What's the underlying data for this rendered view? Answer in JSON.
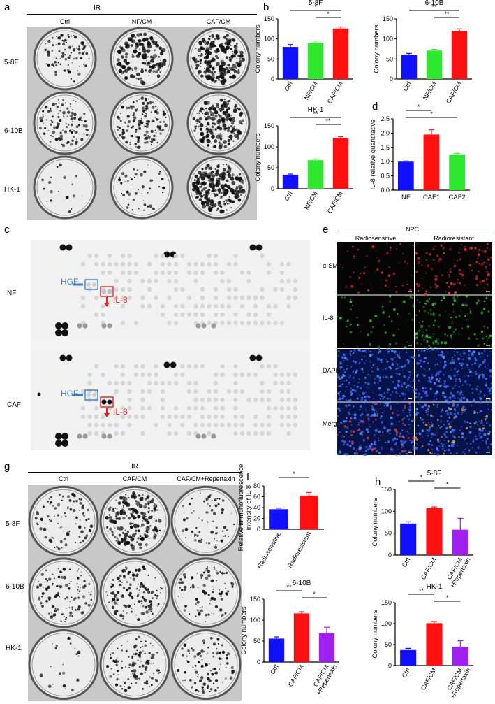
{
  "panels": {
    "a": {
      "label": "a",
      "header": "IR",
      "columns": [
        "Ctrl",
        "NF/CM",
        "CAF/CM"
      ],
      "rows": [
        "5-8F",
        "6-10B",
        "HK-1"
      ]
    },
    "c": {
      "label": "c",
      "rows": [
        "NF",
        "CAF"
      ],
      "hgf": "HGF",
      "il8": "IL-8"
    },
    "e": {
      "label": "e",
      "header": "NPC",
      "columns": [
        "Radiosensitive",
        "Radioresistant"
      ],
      "rows": [
        "α-SMA",
        "IL-8",
        "DAPI",
        "Merge"
      ]
    },
    "g": {
      "label": "g",
      "header": "IR",
      "columns": [
        "Ctrl",
        "CAF/CM",
        "CAF/CM+Repertaxin"
      ],
      "rows": [
        "5-8F",
        "6-10B",
        "HK-1"
      ]
    },
    "b": {
      "label": "b"
    },
    "d": {
      "label": "d"
    },
    "f": {
      "label": "f"
    },
    "h": {
      "label": "h"
    }
  },
  "colors": {
    "blue": "#1010ff",
    "green": "#2ee82e",
    "red": "#ff1010",
    "purple": "#a020f0",
    "hgf": "#3a7fd0",
    "il8": "#e82020"
  },
  "chart_data": [
    {
      "id": "b1",
      "type": "bar",
      "title": "5-8F",
      "ylabel": "Colony numbers",
      "categories": [
        "Ctrl",
        "NF/CM",
        "CAF/CM"
      ],
      "values": [
        80,
        90,
        126
      ],
      "errors": [
        6,
        5,
        4
      ],
      "ylim": [
        0,
        150
      ],
      "yticks": [
        "0",
        "50",
        "100",
        "150"
      ],
      "sig": [
        {
          "from": 0,
          "to": 2,
          "label": "*"
        },
        {
          "from": 1,
          "to": 2,
          "label": "*"
        }
      ]
    },
    {
      "id": "b2",
      "type": "bar",
      "title": "6-10B",
      "ylabel": "Colony numbers",
      "categories": [
        "Ctrl",
        "NF/CM",
        "CAF/CM"
      ],
      "values": [
        60,
        71,
        120
      ],
      "errors": [
        4,
        3,
        5
      ],
      "ylim": [
        0,
        150
      ],
      "yticks": [
        "0",
        "50",
        "100",
        "150"
      ],
      "sig": [
        {
          "from": 0,
          "to": 2,
          "label": "**"
        },
        {
          "from": 1,
          "to": 2,
          "label": "**"
        }
      ]
    },
    {
      "id": "b3",
      "type": "bar",
      "title": "HK-1",
      "ylabel": "Colony numbers",
      "categories": [
        "Ctrl",
        "NF/CM",
        "CAF/CM"
      ],
      "values": [
        33,
        68,
        121
      ],
      "errors": [
        2,
        3,
        3
      ],
      "ylim": [
        0,
        150
      ],
      "yticks": [
        "0",
        "50",
        "100",
        "150"
      ],
      "sig": [
        {
          "from": 0,
          "to": 2,
          "label": "**"
        },
        {
          "from": 1,
          "to": 2,
          "label": "**"
        }
      ]
    },
    {
      "id": "d",
      "type": "bar",
      "title": "",
      "ylabel": "IL-8 relative quantitative",
      "categories": [
        "NF",
        "CAF1",
        "CAF2"
      ],
      "values": [
        1.0,
        1.95,
        1.25
      ],
      "errors": [
        0.02,
        0.17,
        0.04
      ],
      "ylim": [
        0,
        2.5
      ],
      "yticks": [
        "0.0",
        "0.5",
        "1.0",
        "1.5",
        "2.0",
        "2.5"
      ],
      "sig": [
        {
          "from": 0,
          "to": 1,
          "label": "*"
        },
        {
          "from": 0,
          "to": 2,
          "label": "*"
        }
      ]
    },
    {
      "id": "f",
      "type": "bar",
      "title": "",
      "ylabel": "Relative immunofluorescence intensity of IL-8",
      "categories": [
        "Radiosensitive",
        "Radioresistant"
      ],
      "values": [
        37,
        62
      ],
      "errors": [
        2,
        6
      ],
      "ylim": [
        0,
        80
      ],
      "yticks": [
        "0",
        "20",
        "40",
        "60",
        "80"
      ],
      "sig": [
        {
          "from": 0,
          "to": 1,
          "label": "*"
        }
      ]
    },
    {
      "id": "h1",
      "type": "bar",
      "title": "5-8F",
      "ylabel": "Colony numbers",
      "categories": [
        "Ctrl",
        "CAF/CM",
        "CAF/CM\n+Repertaxin"
      ],
      "values": [
        72,
        107,
        58
      ],
      "errors": [
        4,
        3,
        26
      ],
      "ylim": [
        0,
        150
      ],
      "yticks": [
        "0",
        "50",
        "100",
        "150"
      ],
      "sig": [
        {
          "from": 0,
          "to": 1,
          "label": "*"
        },
        {
          "from": 1,
          "to": 2,
          "label": "*"
        }
      ]
    },
    {
      "id": "g2",
      "type": "bar",
      "title": "6-10B",
      "ylabel": "Colony numbers",
      "categories": [
        "Ctrl",
        "CAF/CM",
        "CAF/CM\n+Repertaxin"
      ],
      "values": [
        56,
        116,
        69
      ],
      "errors": [
        4,
        4,
        14
      ],
      "ylim": [
        0,
        150
      ],
      "yticks": [
        "0",
        "50",
        "100",
        "150"
      ],
      "sig": [
        {
          "from": 0,
          "to": 1,
          "label": "**"
        },
        {
          "from": 1,
          "to": 2,
          "label": "*"
        }
      ]
    },
    {
      "id": "h2",
      "type": "bar",
      "title": "HK-1",
      "ylabel": "Colony numbers",
      "categories": [
        "Ctrl",
        "CAF/CM",
        "CAF/CM\n+Repertaxin"
      ],
      "values": [
        37,
        101,
        45
      ],
      "errors": [
        4,
        4,
        14
      ],
      "ylim": [
        0,
        150
      ],
      "yticks": [
        "0",
        "50",
        "100",
        "150"
      ],
      "sig": [
        {
          "from": 0,
          "to": 1,
          "label": "**"
        },
        {
          "from": 1,
          "to": 2,
          "label": "*"
        }
      ]
    }
  ]
}
